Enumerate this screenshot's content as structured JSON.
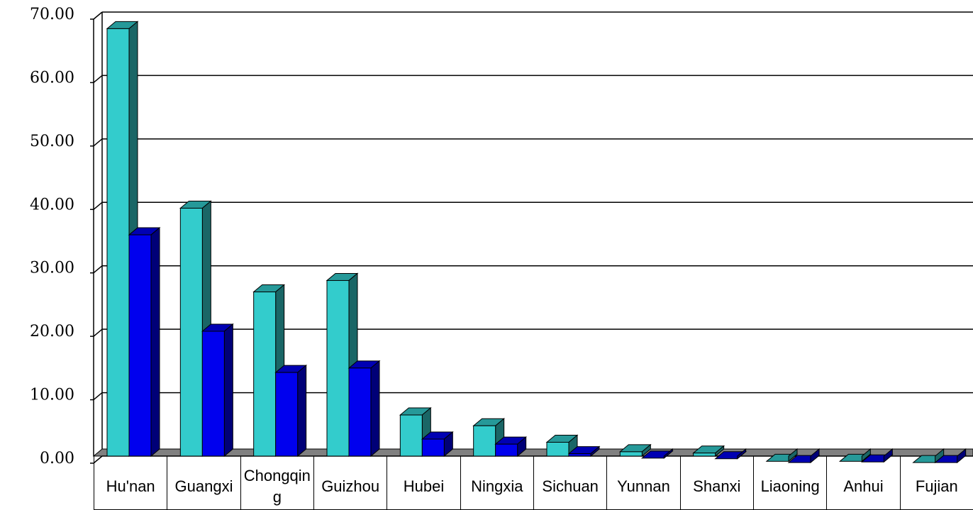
{
  "chart_data": {
    "type": "bar3d",
    "categories": [
      "Hu'nan",
      "Guangxi",
      "Chongqing",
      "Guizhou",
      "Hubei",
      "Ningxia",
      "Sichuan",
      "Yunnan",
      "Shanxi",
      "Liaoning",
      "Anhui",
      "Fujian"
    ],
    "series": [
      {
        "color": "#33cccc",
        "values": [
          68.5,
          40.2,
          27.0,
          28.8,
          7.6,
          5.9,
          3.3,
          1.8,
          1.6,
          0.3,
          0.3,
          0.1
        ]
      },
      {
        "color": "#0000ee",
        "values": [
          36.0,
          20.8,
          14.3,
          15.0,
          3.8,
          3.0,
          1.5,
          0.8,
          0.7,
          0.1,
          0.2,
          0.1
        ]
      }
    ],
    "ylim": [
      0,
      70
    ],
    "yticks": [
      {
        "value": 0,
        "label": "0.00"
      },
      {
        "value": 10,
        "label": "10.00"
      },
      {
        "value": 20,
        "label": "20.00"
      },
      {
        "value": 30,
        "label": "30.00"
      },
      {
        "value": 40,
        "label": "40.00"
      },
      {
        "value": 50,
        "label": "50.00"
      },
      {
        "value": 60,
        "label": "60.00"
      },
      {
        "value": 70,
        "label": "70.00"
      }
    ],
    "grid": true
  }
}
